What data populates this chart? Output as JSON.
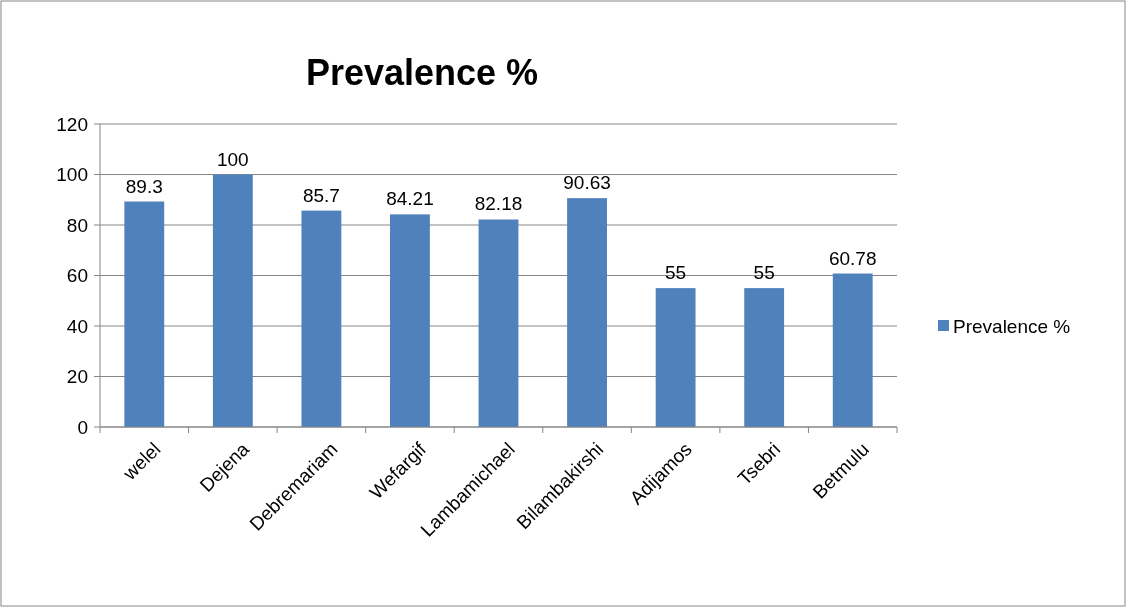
{
  "chart_data": {
    "type": "bar",
    "title": "Prevalence  %",
    "categories": [
      "welel",
      "Dejena",
      "Debremariam",
      "Wefargif",
      "Lambamichael",
      "Bilambakirshi",
      "Adijamos",
      "Tsebri",
      "Betmulu"
    ],
    "series": [
      {
        "name": "Prevalence  %",
        "color": "#4f81bd",
        "values": [
          89.3,
          100,
          85.7,
          84.21,
          82.18,
          90.63,
          55,
          55,
          60.78
        ]
      }
    ],
    "ylim": [
      0,
      120
    ],
    "yticks": [
      0,
      20,
      40,
      60,
      80,
      100,
      120
    ],
    "grid": "y",
    "legend": "right",
    "data_labels": true
  }
}
